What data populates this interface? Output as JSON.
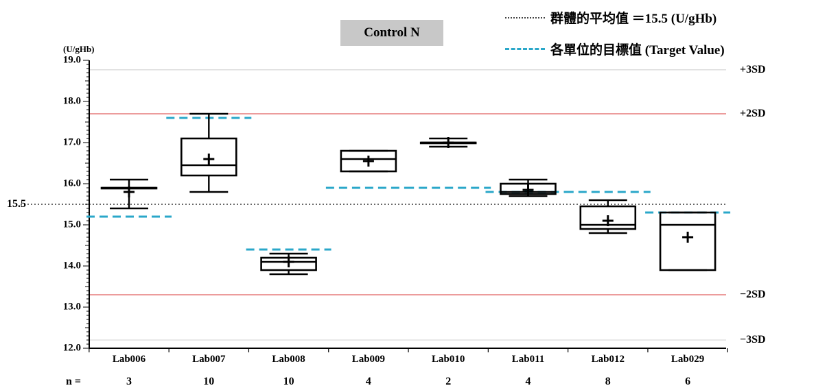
{
  "chart_data": {
    "type": "box",
    "title": "Control N",
    "unit": "(U/gHb)",
    "ylim": [
      12.0,
      19.0
    ],
    "yticks": [
      "19.0",
      "18.0",
      "17.0",
      "16.0",
      "15.0",
      "14.0",
      "13.0",
      "12.0"
    ],
    "yticks_values": [
      19,
      18,
      17,
      16,
      15,
      14,
      13,
      12
    ],
    "group_mean": {
      "value": 15.5,
      "label": "15.5"
    },
    "reference_lines": [
      {
        "label": "+3SD",
        "value": 18.77,
        "color": "#d9d9d9"
      },
      {
        "label": "+2SD",
        "value": 17.7,
        "color": "#e06060"
      },
      {
        "label": "−2SD",
        "value": 13.3,
        "color": "#e06060"
      },
      {
        "label": "−3SD",
        "value": 12.2,
        "color": "#d9d9d9"
      }
    ],
    "legend": [
      {
        "style": "dotted",
        "label": "群體的平均值 ＝15.5 (U/gHb)"
      },
      {
        "style": "dashed",
        "label": "各單位的目標值 (Target Value)"
      }
    ],
    "n_label": "n =",
    "labs": [
      {
        "name": "Lab006",
        "n": "3",
        "min": 15.4,
        "q1": 15.9,
        "median": 15.9,
        "q3": 15.9,
        "max": 16.1,
        "mean": 15.8,
        "target": 15.2
      },
      {
        "name": "Lab007",
        "n": "10",
        "min": 15.8,
        "q1": 16.2,
        "median": 16.45,
        "q3": 17.1,
        "max": 17.7,
        "mean": 16.6,
        "target": 17.6
      },
      {
        "name": "Lab008",
        "n": "10",
        "min": 13.8,
        "q1": 13.9,
        "median": 14.1,
        "q3": 14.2,
        "max": 14.3,
        "mean": 14.1,
        "target": 14.4
      },
      {
        "name": "Lab009",
        "n": "4",
        "min": 16.3,
        "q1": 16.3,
        "median": 16.6,
        "q3": 16.8,
        "max": 16.8,
        "mean": 16.55,
        "target": 15.9
      },
      {
        "name": "Lab010",
        "n": "2",
        "min": 16.9,
        "q1": 17.0,
        "median": 17.0,
        "q3": 17.0,
        "max": 17.1,
        "mean": 17.0,
        "target": 15.9
      },
      {
        "name": "Lab011",
        "n": "4",
        "min": 15.7,
        "q1": 15.75,
        "median": 15.8,
        "q3": 16.0,
        "max": 16.1,
        "mean": 15.85,
        "target": 15.8
      },
      {
        "name": "Lab012",
        "n": "8",
        "min": 14.8,
        "q1": 14.9,
        "median": 15.0,
        "q3": 15.45,
        "max": 15.6,
        "mean": 15.1,
        "target": 15.8
      },
      {
        "name": "Lab029",
        "n": "6",
        "min": 13.9,
        "q1": 13.9,
        "median": 15.0,
        "q3": 15.3,
        "max": 15.3,
        "mean": 14.7,
        "target": 15.3
      }
    ]
  }
}
